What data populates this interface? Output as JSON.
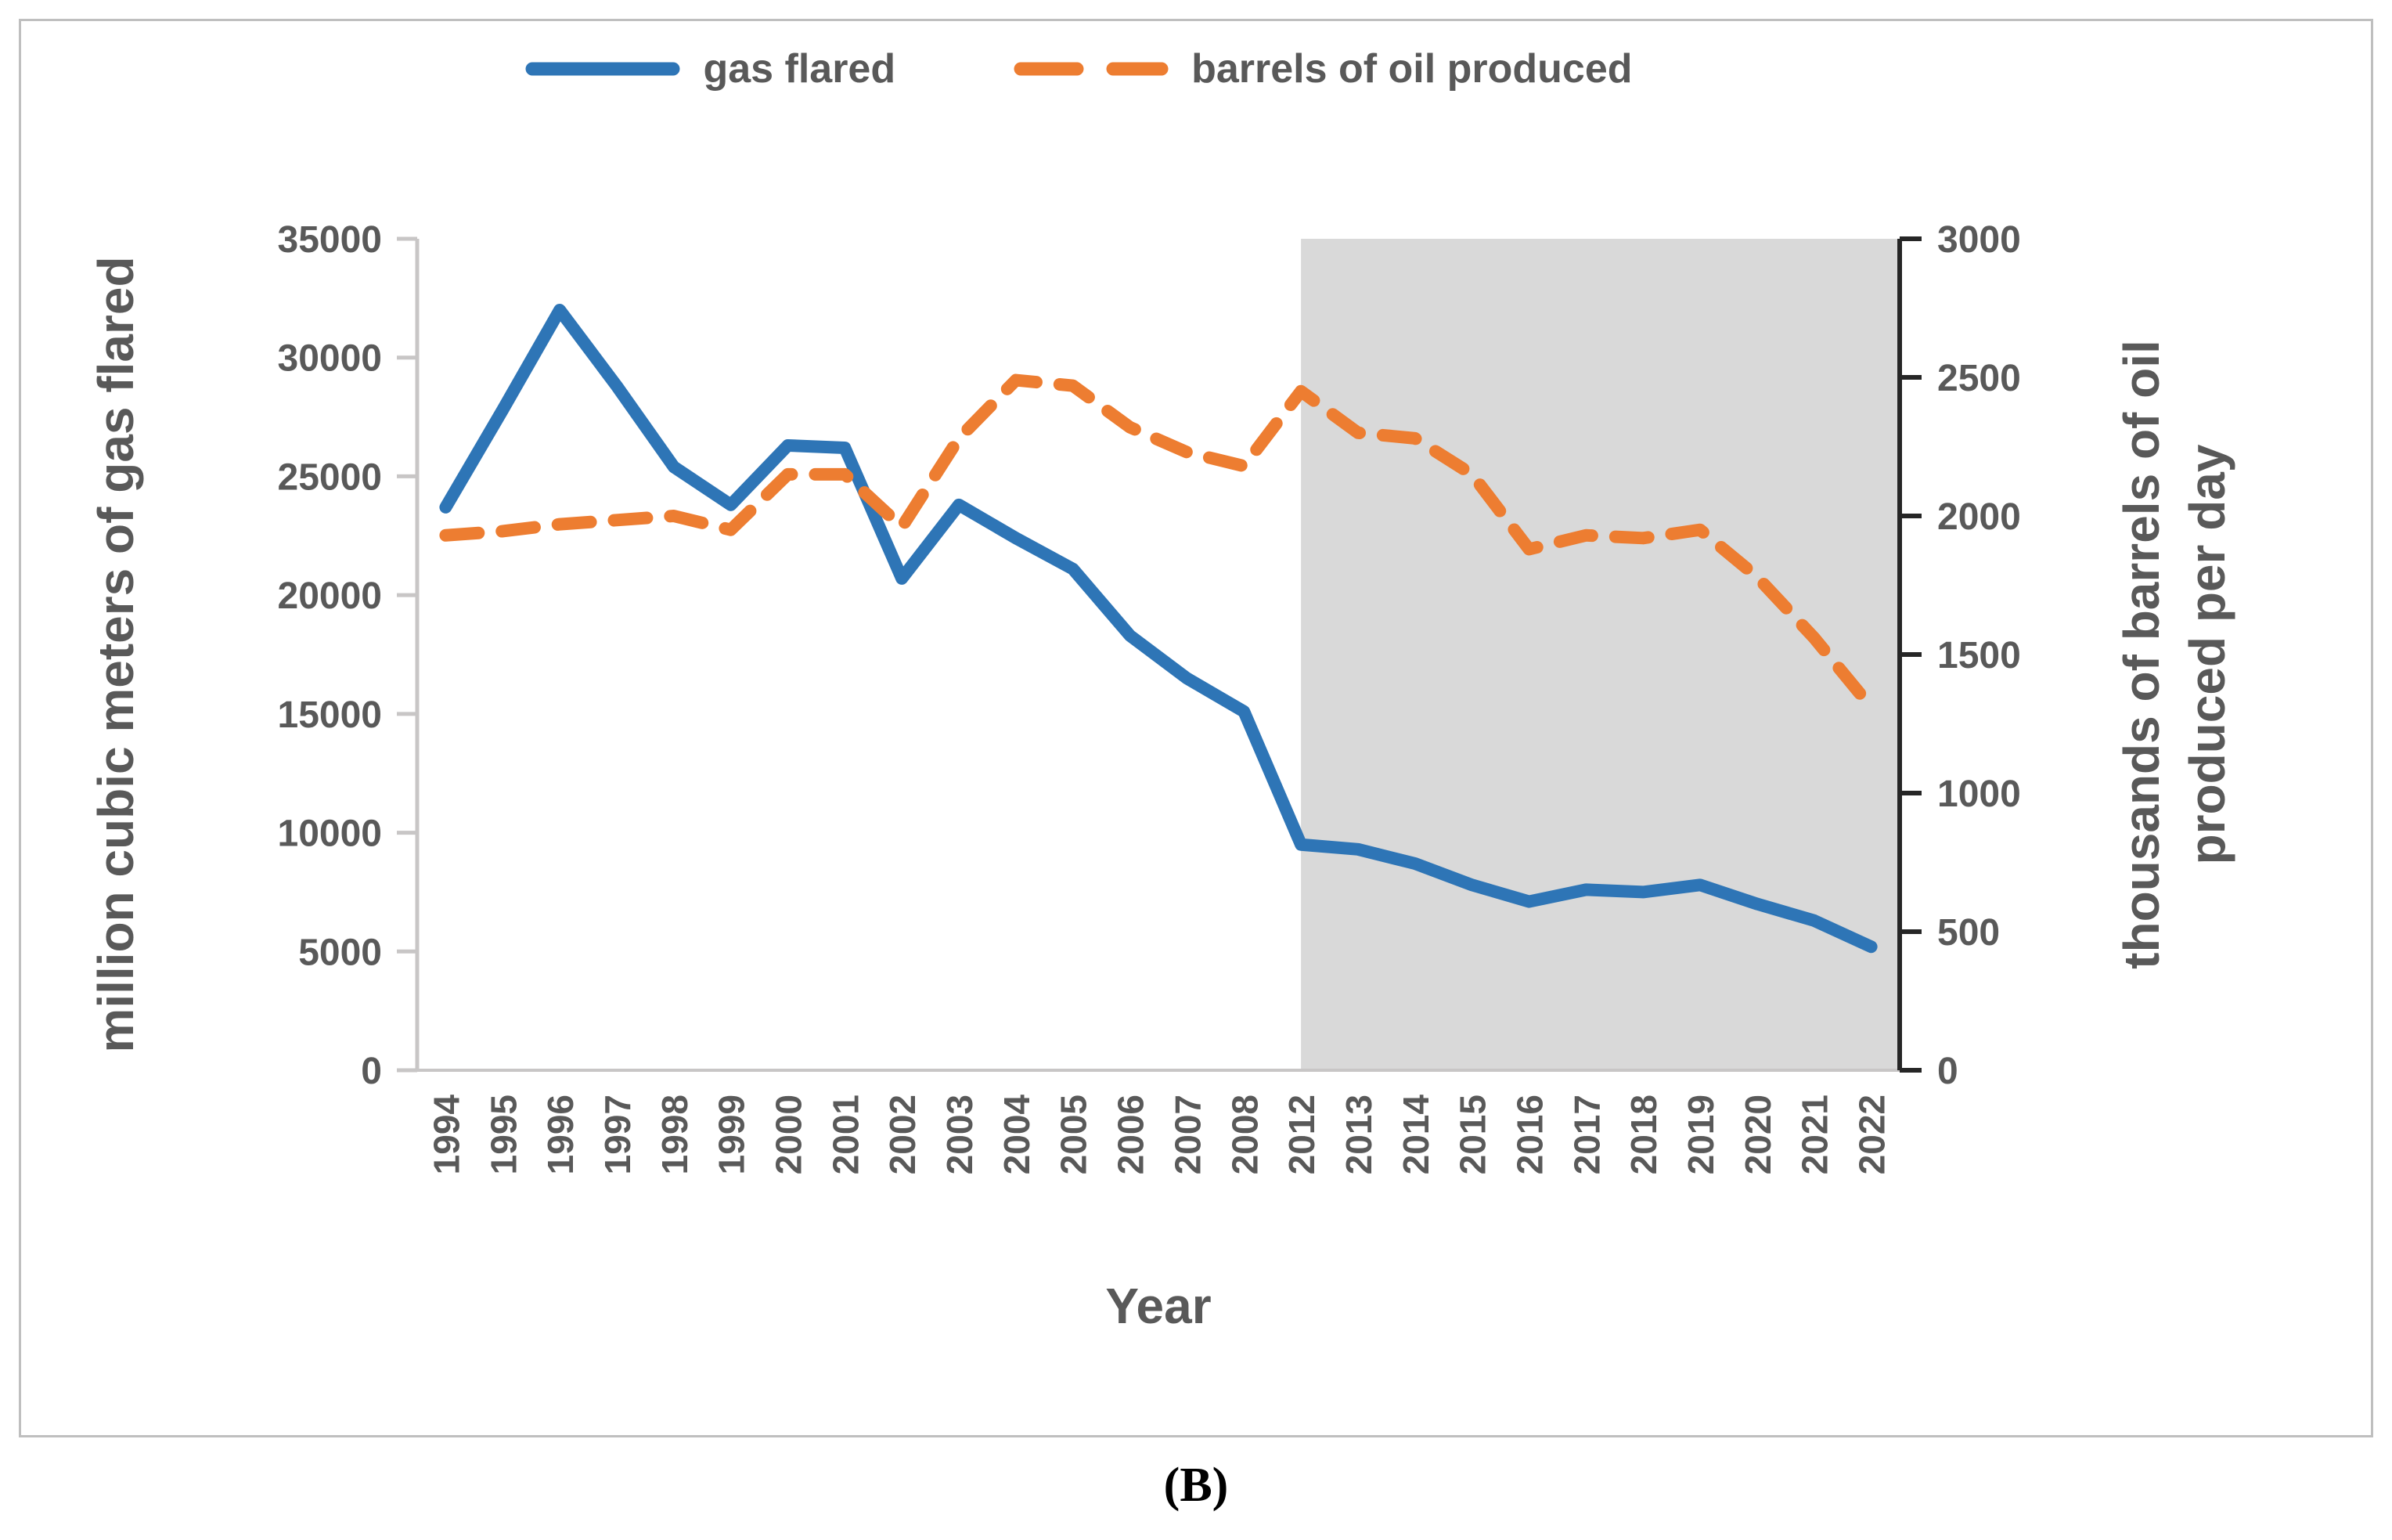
{
  "figure": {
    "caption": "(B)"
  },
  "legend": [
    {
      "label": "gas flared",
      "color": "#2e75b6",
      "style": "solid"
    },
    {
      "label": "barrels of oil produced",
      "color": "#ed7d31",
      "style": "dashed"
    }
  ],
  "chart_data": {
    "type": "line",
    "title": "",
    "xlabel": "Year",
    "ylabel_left": "million cubic meters of gas flared",
    "ylabel_right_lines": [
      "thousands of barrels of oil",
      "produced per day"
    ],
    "categories": [
      "1994",
      "1995",
      "1996",
      "1997",
      "1998",
      "1999",
      "2000",
      "2001",
      "2002",
      "2003",
      "2004",
      "2005",
      "2006",
      "2007",
      "2008",
      "2012",
      "2013",
      "2014",
      "2015",
      "2016",
      "2017",
      "2018",
      "2019",
      "2020",
      "2021",
      "2022"
    ],
    "series": [
      {
        "name": "gas flared",
        "axis": "left",
        "color": "#2e75b6",
        "style": "solid",
        "values": [
          23700,
          27800,
          32000,
          28800,
          25400,
          23800,
          26300,
          26200,
          20700,
          23800,
          22400,
          21100,
          18300,
          16500,
          15100,
          9500,
          9300,
          8700,
          7800,
          7100,
          7600,
          7500,
          7800,
          7000,
          6300,
          5200
        ]
      },
      {
        "name": "barrels of oil produced",
        "axis": "right",
        "color": "#ed7d31",
        "style": "dashed",
        "values": [
          1930,
          1945,
          1970,
          1985,
          2000,
          1950,
          2150,
          2150,
          1960,
          2280,
          2490,
          2470,
          2320,
          2230,
          2180,
          2450,
          2300,
          2280,
          2150,
          1880,
          1930,
          1920,
          1950,
          1780,
          1560,
          1310
        ]
      }
    ],
    "ylim_left": [
      0,
      35000
    ],
    "ylim_right": [
      0,
      3000
    ],
    "yticks_left": [
      0,
      5000,
      10000,
      15000,
      20000,
      25000,
      30000,
      35000
    ],
    "yticks_right": [
      0,
      500,
      1000,
      1500,
      2000,
      2500,
      3000
    ],
    "grid": false,
    "legend_position": "top",
    "highlight_region": {
      "from": "2012",
      "to": "2022",
      "color": "#d9d9d9"
    }
  },
  "colors": {
    "text": "#595959",
    "left_axis": "#c8c6c6",
    "right_axis": "#262626",
    "border": "#bfbfbf",
    "background": "#ffffff"
  }
}
